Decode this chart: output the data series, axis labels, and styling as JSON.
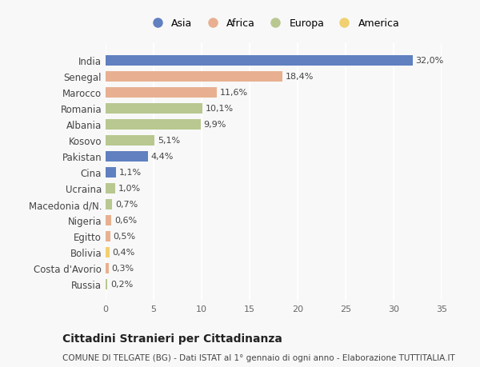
{
  "countries": [
    "India",
    "Senegal",
    "Marocco",
    "Romania",
    "Albania",
    "Kosovo",
    "Pakistan",
    "Cina",
    "Ucraina",
    "Macedonia d/N.",
    "Nigeria",
    "Egitto",
    "Bolivia",
    "Costa d'Avorio",
    "Russia"
  ],
  "values": [
    32.0,
    18.4,
    11.6,
    10.1,
    9.9,
    5.1,
    4.4,
    1.1,
    1.0,
    0.7,
    0.6,
    0.5,
    0.4,
    0.3,
    0.2
  ],
  "labels": [
    "32,0%",
    "18,4%",
    "11,6%",
    "10,1%",
    "9,9%",
    "5,1%",
    "4,4%",
    "1,1%",
    "1,0%",
    "0,7%",
    "0,6%",
    "0,5%",
    "0,4%",
    "0,3%",
    "0,2%"
  ],
  "continents": [
    "Asia",
    "Africa",
    "Africa",
    "Europa",
    "Europa",
    "Europa",
    "Asia",
    "Asia",
    "Europa",
    "Europa",
    "Africa",
    "Africa",
    "America",
    "Africa",
    "Europa"
  ],
  "continent_colors": {
    "Asia": "#6080c0",
    "Africa": "#e8b090",
    "Europa": "#b8c890",
    "America": "#f0d070"
  },
  "legend_order": [
    "Asia",
    "Africa",
    "Europa",
    "America"
  ],
  "title": "Cittadini Stranieri per Cittadinanza",
  "subtitle": "COMUNE DI TELGATE (BG) - Dati ISTAT al 1° gennaio di ogni anno - Elaborazione TUTTITALIA.IT",
  "xlim": [
    0,
    35
  ],
  "xticks": [
    0,
    5,
    10,
    15,
    20,
    25,
    30,
    35
  ],
  "background_color": "#f8f8f8",
  "grid_color": "#ffffff",
  "bar_height": 0.65
}
